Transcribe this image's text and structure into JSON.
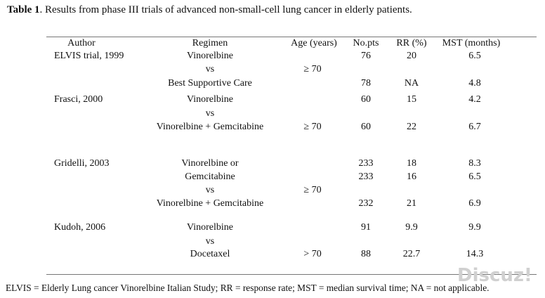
{
  "caption": {
    "label": "Table 1",
    "text": ". Results from phase III trials of advanced non-small-cell lung cancer in elderly patients."
  },
  "table": {
    "headers": [
      "Author",
      "Regimen",
      "Age (years)",
      "No.pts",
      "RR (%)",
      "MST (months)"
    ],
    "rows": [
      {
        "author": "ELVIS trial, 1999",
        "regimen": "Vinorelbine",
        "age": "",
        "pts": "76",
        "rr": "20",
        "mst": "6.5"
      },
      {
        "author": "",
        "regimen": "vs",
        "age": "≥ 70",
        "pts": "",
        "rr": "",
        "mst": ""
      },
      {
        "author": "",
        "regimen": "Best Supportive Care",
        "age": "",
        "pts": "78",
        "rr": "NA",
        "mst": "4.8"
      },
      {
        "author": "Frasci, 2000",
        "regimen": "Vinorelbine",
        "age": "",
        "pts": "60",
        "rr": "15",
        "mst": "4.2"
      },
      {
        "author": "",
        "regimen": "vs",
        "age": "",
        "pts": "",
        "rr": "",
        "mst": ""
      },
      {
        "author": "",
        "regimen": "Vinorelbine + Gemcitabine",
        "age": "≥ 70",
        "pts": "60",
        "rr": "22",
        "mst": "6.7"
      },
      {
        "author": "Gridelli, 2003",
        "regimen": "Vinorelbine or",
        "age": "",
        "pts": "233",
        "rr": "18",
        "mst": "8.3"
      },
      {
        "author": "",
        "regimen": "Gemcitabine",
        "age": "",
        "pts": "233",
        "rr": "16",
        "mst": "6.5"
      },
      {
        "author": "",
        "regimen": "vs",
        "age": "≥ 70",
        "pts": "",
        "rr": "",
        "mst": ""
      },
      {
        "author": "",
        "regimen": "Vinorelbine + Gemcitabine",
        "age": "",
        "pts": "232",
        "rr": "21",
        "mst": "6.9"
      },
      {
        "author": "Kudoh, 2006",
        "regimen": "Vinorelbine",
        "age": "",
        "pts": "91",
        "rr": "9.9",
        "mst": "9.9"
      },
      {
        "author": "",
        "regimen": "vs",
        "age": "",
        "pts": "",
        "rr": "",
        "mst": ""
      },
      {
        "author": "",
        "regimen": "Docetaxel",
        "age": "> 70",
        "pts": "88",
        "rr": "22.7",
        "mst": "14.3"
      }
    ]
  },
  "footnote": "ELVIS = Elderly Lung cancer Vinorelbine Italian Study; RR = response rate; MST = median survival time; NA = not applicable.",
  "watermark": "Discuz!"
}
